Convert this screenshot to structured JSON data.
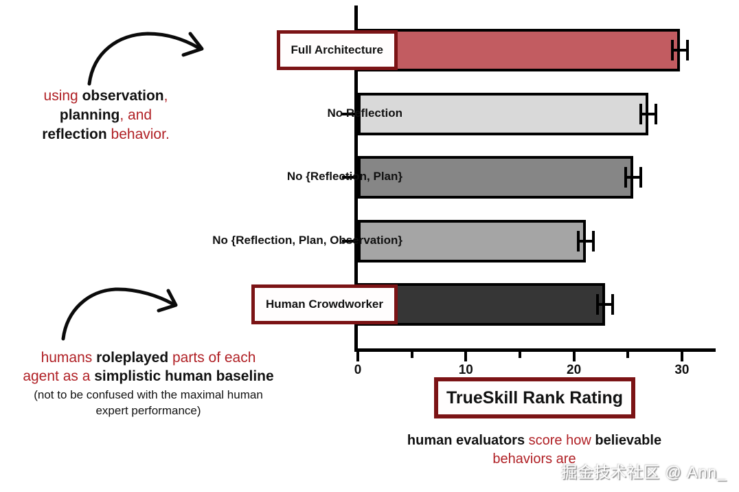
{
  "colors": {
    "maroon": "#7b1315",
    "red_text": "#b02025",
    "axis_black": "#000000"
  },
  "watermark": {
    "text": "掘金技术社区 @ Ann_"
  },
  "annotation_top": {
    "lines": [
      [
        {
          "t": "using ",
          "red": true
        },
        {
          "t": "observation",
          "bold": true
        },
        {
          "t": ",",
          "red": true
        }
      ],
      [
        {
          "t": "planning",
          "bold": true
        },
        {
          "t": ", and",
          "red": true
        }
      ],
      [
        {
          "t": "reflection",
          "bold": true
        },
        {
          "t": " behavior.",
          "red": true
        }
      ]
    ]
  },
  "annotation_bottom": {
    "lines": [
      [
        {
          "t": "humans ",
          "red": true
        },
        {
          "t": "roleplayed",
          "bold": true
        },
        {
          "t": " parts of each",
          "red": true
        }
      ],
      [
        {
          "t": "agent as a ",
          "red": true
        },
        {
          "t": "simplistic human baseline",
          "bold": true
        }
      ]
    ],
    "note_lines": [
      "(not to be confused with the maximal human",
      "expert performance)"
    ]
  },
  "caption": {
    "lines": [
      [
        {
          "t": "human evaluators",
          "bold": true
        },
        {
          "t": " score how ",
          "red": true
        },
        {
          "t": "believable",
          "bold": true
        }
      ],
      [
        {
          "t": "behaviors are",
          "red": true
        }
      ]
    ]
  },
  "chart_data": {
    "type": "bar",
    "orientation": "horizontal",
    "title": "",
    "xlabel": "TrueSkill Rank Rating",
    "categories": [
      "Full Architecture",
      "No Reflection",
      "No {Reflection, Plan}",
      "No {Reflection, Plan, Observation}",
      "Human Crowdworker"
    ],
    "values": [
      29.8,
      26.9,
      25.5,
      21.1,
      22.9
    ],
    "errors": [
      0.7,
      0.7,
      0.7,
      0.7,
      0.7
    ],
    "bar_colors": [
      "#c25c61",
      "#d9d9d9",
      "#868686",
      "#a5a5a5",
      "#363636"
    ],
    "boxed_categories": [
      "Full Architecture",
      "Human Crowdworker"
    ],
    "xlim": [
      0,
      33
    ],
    "xticks": [
      0,
      10,
      20,
      30
    ],
    "xticks_minor": [
      5,
      15,
      25
    ],
    "grid": false,
    "legend": null
  }
}
